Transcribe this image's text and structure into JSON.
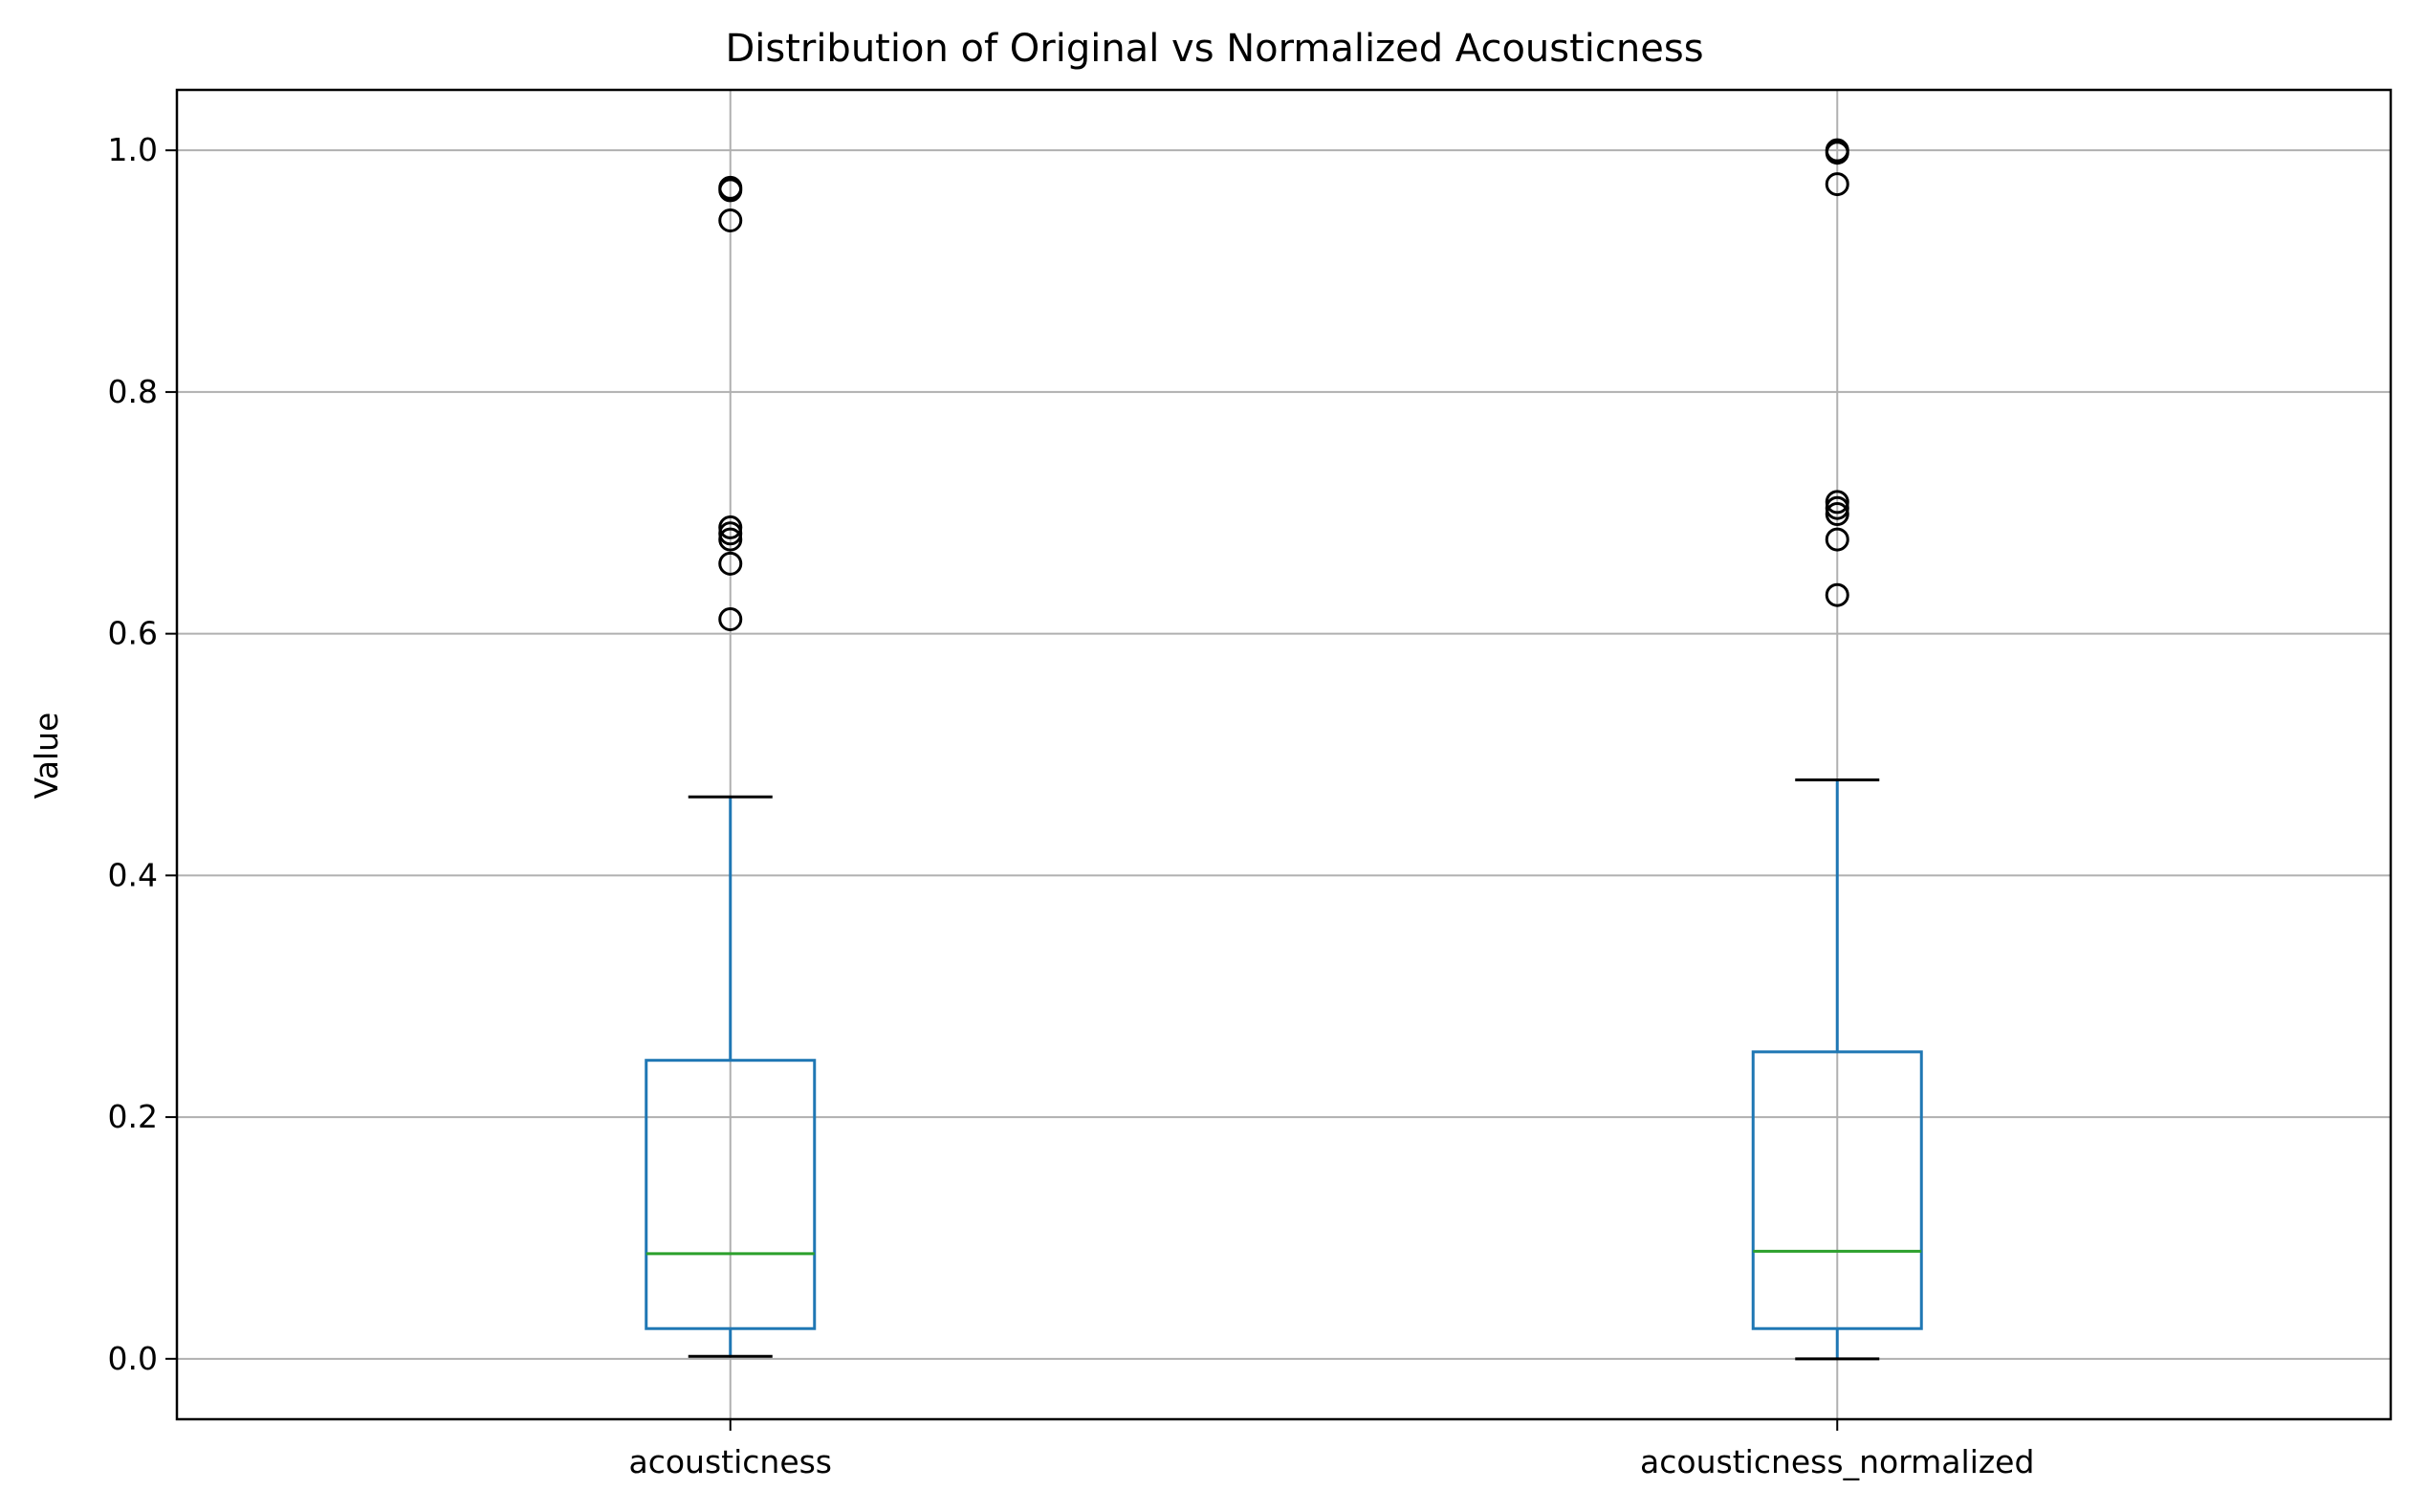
{
  "chart_data": {
    "type": "box",
    "title": "Distribution of Original vs Normalized Acousticness",
    "xlabel": "",
    "ylabel": "Value",
    "ylim": [
      -0.05,
      1.05
    ],
    "yticks": [
      0.0,
      0.2,
      0.4,
      0.6,
      0.8,
      1.0
    ],
    "ytick_labels": [
      "0.0",
      "0.2",
      "0.4",
      "0.6",
      "0.8",
      "1.0"
    ],
    "grid": true,
    "categories": [
      "acousticness",
      "acousticness_normalized"
    ],
    "boxes": [
      {
        "name": "acousticness",
        "whisker_low": 0.002,
        "q1": 0.025,
        "median": 0.087,
        "q3": 0.247,
        "whisker_high": 0.465,
        "outliers": [
          0.969,
          0.967,
          0.942,
          0.688,
          0.683,
          0.678,
          0.658,
          0.612
        ]
      },
      {
        "name": "acousticness_normalized",
        "whisker_low": 0.0,
        "q1": 0.025,
        "median": 0.089,
        "q3": 0.254,
        "whisker_high": 0.479,
        "outliers": [
          1.0,
          0.998,
          0.972,
          0.709,
          0.704,
          0.699,
          0.678,
          0.632
        ]
      }
    ],
    "colors": {
      "box": "#1f77b4",
      "median": "#2ca02c",
      "cap": "#000000",
      "outlier": "#000000",
      "grid": "#b0b0b0",
      "axes": "#000000"
    }
  }
}
